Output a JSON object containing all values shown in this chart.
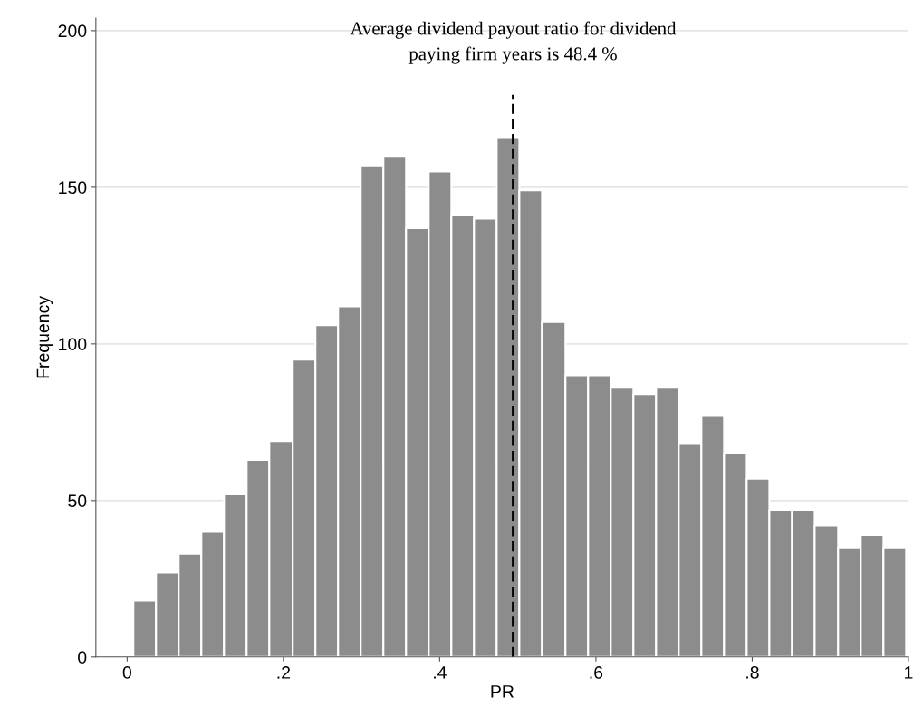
{
  "chart_data": {
    "type": "histogram",
    "xlabel": "PR",
    "ylabel": "Frequency",
    "bins": [
      0.008,
      0.037,
      0.066,
      0.095,
      0.124,
      0.153,
      0.182,
      0.212,
      0.241,
      0.27,
      0.299,
      0.328,
      0.357,
      0.386,
      0.415,
      0.444,
      0.473,
      0.502,
      0.531,
      0.561,
      0.59,
      0.619,
      0.648,
      0.677,
      0.706,
      0.735,
      0.764,
      0.793,
      0.822,
      0.851,
      0.88,
      0.91,
      0.939,
      0.968,
      0.997
    ],
    "values": [
      18,
      27,
      33,
      40,
      52,
      63,
      69,
      95,
      106,
      112,
      157,
      160,
      137,
      155,
      141,
      140,
      166,
      149,
      107,
      90,
      90,
      86,
      84,
      86,
      68,
      77,
      65,
      57,
      47,
      47,
      42,
      35,
      39,
      35
    ],
    "color": "#8c8c8c",
    "xlim": [
      -0.04,
      1.0
    ],
    "ylim": [
      0,
      204
    ],
    "xticks": [
      0,
      {
        "value": 0.2,
        "label": ".2"
      },
      {
        "value": 0.4,
        "label": ".4"
      },
      {
        "value": 0.6,
        "label": ".6"
      },
      {
        "value": 0.8,
        "label": ".8"
      },
      1
    ],
    "yticks": [
      0,
      50,
      100,
      150,
      200
    ],
    "grid": "y",
    "ref_lines": [
      {
        "axis": "x",
        "value": 0.494,
        "label": "Average dividend payout ratio for dividend\npaying firm years is 48.4 %",
        "color": "#000000",
        "line_style": "dashed"
      }
    ]
  }
}
